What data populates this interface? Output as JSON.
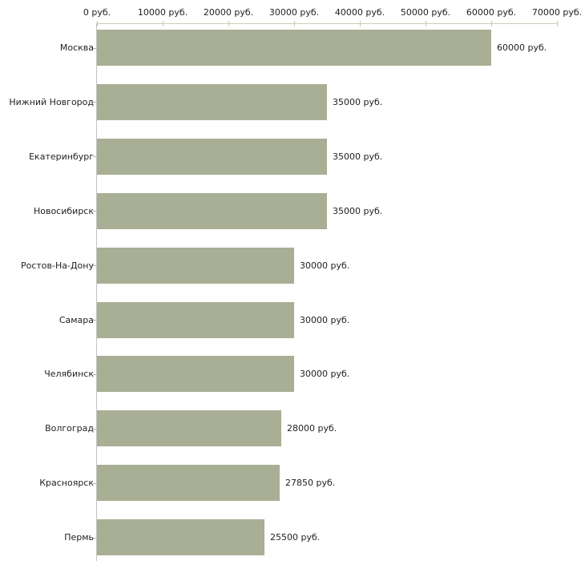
{
  "chart_data": {
    "type": "bar",
    "orientation": "horizontal",
    "title": "",
    "xlabel": "",
    "ylabel": "",
    "unit_suffix": " руб.",
    "categories": [
      "Москва",
      "Нижний Новгород",
      "Екатеринбург",
      "Новосибирск",
      "Ростов-На-Дону",
      "Самара",
      "Челябинск",
      "Волгоград",
      "Красноярск",
      "Пермь"
    ],
    "values": [
      60000,
      35000,
      35000,
      35000,
      30000,
      30000,
      30000,
      28000,
      27850,
      25500
    ],
    "value_labels": [
      "60000 руб.",
      "35000 руб.",
      "35000 руб.",
      "35000 руб.",
      "30000 руб.",
      "30000 руб.",
      "30000 руб.",
      "28000 руб.",
      "27850 руб.",
      "25500 руб."
    ],
    "xlim": [
      0,
      70000
    ],
    "x_ticks": [
      0,
      10000,
      20000,
      30000,
      40000,
      50000,
      60000,
      70000
    ],
    "x_tick_labels": [
      "0 руб.",
      "10000 руб.",
      "20000 руб.",
      "30000 руб.",
      "40000 руб.",
      "50000 руб.",
      "60000 руб.",
      "70000 руб."
    ],
    "grid": false,
    "legend": null,
    "axis_position": "top",
    "colors": {
      "bar_fill": "#a9af94",
      "h_axis_line": "#ccccbb",
      "x_tick_mark": "#c9c9a3",
      "v_axis_line": "#c3c3c3",
      "category_tick": "#b3b3a0",
      "text": "#1f1f1f",
      "background": "#ffffff"
    }
  }
}
